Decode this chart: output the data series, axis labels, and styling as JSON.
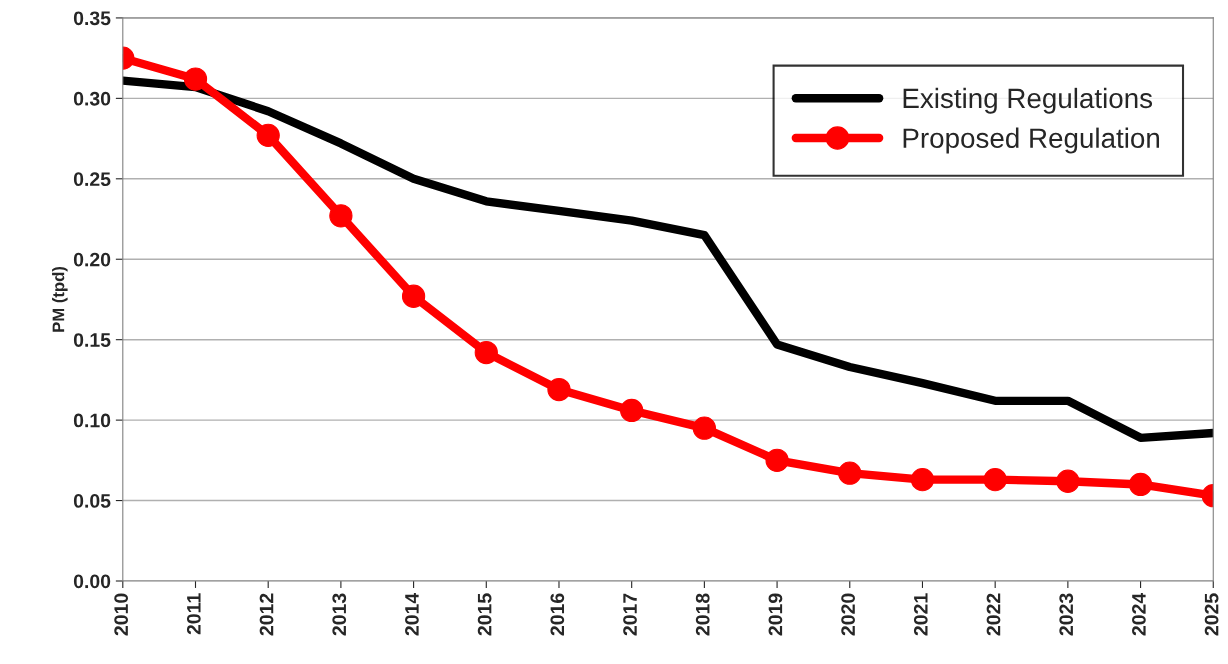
{
  "chart_data": {
    "type": "line",
    "ylabel": "PM (tpd)",
    "categories": [
      "2010",
      "2011",
      "2012",
      "2013",
      "2014",
      "2015",
      "2016",
      "2017",
      "2018",
      "2019",
      "2020",
      "2021",
      "2022",
      "2023",
      "2024",
      "2025"
    ],
    "series": [
      {
        "name": "Existing Regulations",
        "color": "#000000",
        "marker": "none",
        "values": [
          0.311,
          0.307,
          0.292,
          0.272,
          0.25,
          0.236,
          0.23,
          0.224,
          0.215,
          0.147,
          0.133,
          0.123,
          0.112,
          0.112,
          0.089,
          0.092
        ]
      },
      {
        "name": "Proposed Regulation",
        "color": "#ff0000",
        "marker": "circle",
        "values": [
          0.325,
          0.312,
          0.277,
          0.227,
          0.177,
          0.142,
          0.119,
          0.106,
          0.095,
          0.075,
          0.067,
          0.063,
          0.063,
          0.062,
          0.06,
          0.053
        ]
      }
    ],
    "ylim": [
      0,
      0.35
    ],
    "yticks": [
      {
        "value": 0,
        "label": "0.00"
      },
      {
        "value": 0.05,
        "label": "0.05"
      },
      {
        "value": 0.1,
        "label": "0.10"
      },
      {
        "value": 0.15,
        "label": "0.15"
      },
      {
        "value": 0.2,
        "label": "0.20"
      },
      {
        "value": 0.25,
        "label": "0.25"
      },
      {
        "value": 0.3,
        "label": "0.30"
      },
      {
        "value": 0.35,
        "label": "0.35"
      }
    ],
    "grid": "y",
    "legend": "top right"
  }
}
